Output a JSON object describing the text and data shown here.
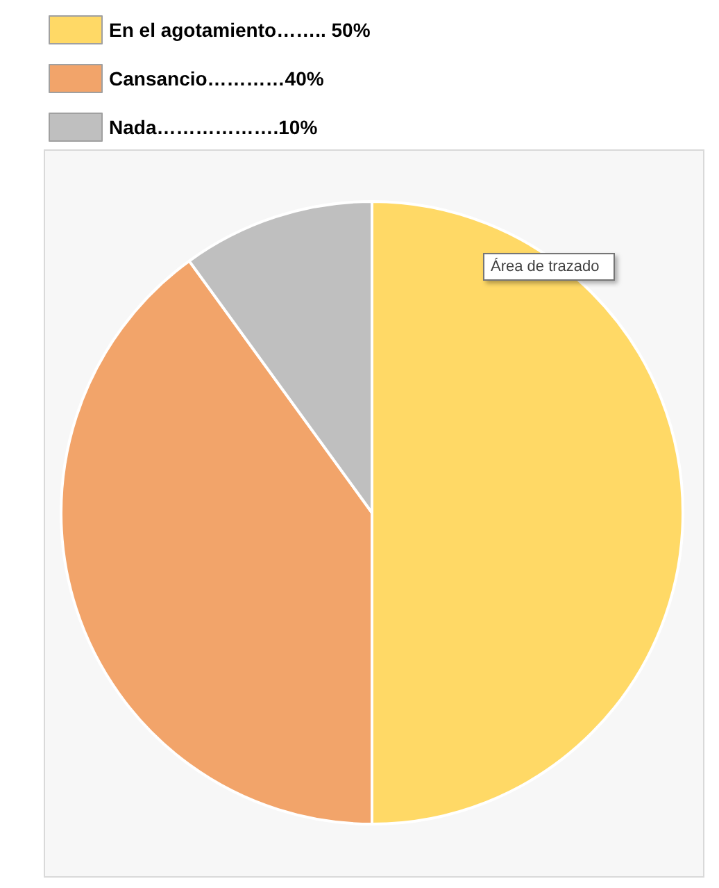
{
  "chart_data": {
    "type": "pie",
    "categories": [
      "En el agotamiento…….. 50%",
      "Cansancio…………40%",
      "Nada……………….10%"
    ],
    "values": [
      50,
      40,
      10
    ],
    "colors": [
      "#ffd966",
      "#f2a46a",
      "#bfbfbf"
    ],
    "legend": "top left",
    "annotations": [
      "Área de trazado"
    ]
  }
}
